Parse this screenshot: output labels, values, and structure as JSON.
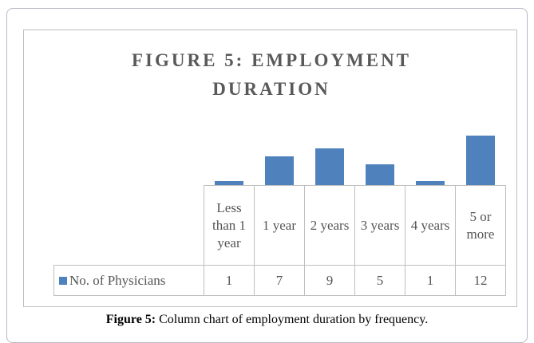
{
  "chart_data": {
    "type": "bar",
    "title": "FIGURE 5: EMPLOYMENT DURATION",
    "categories": [
      "Less than 1 year",
      "1 year",
      "2 years",
      "3 years",
      "4 years",
      "5 or more"
    ],
    "series": [
      {
        "name": "No. of Physicians",
        "color": "#4f81bd",
        "values": [
          1,
          7,
          9,
          5,
          1,
          12
        ]
      }
    ],
    "ylim": [
      0,
      12
    ]
  },
  "caption": {
    "label": "Figure 5:",
    "text": "Column chart of employment duration by frequency."
  }
}
